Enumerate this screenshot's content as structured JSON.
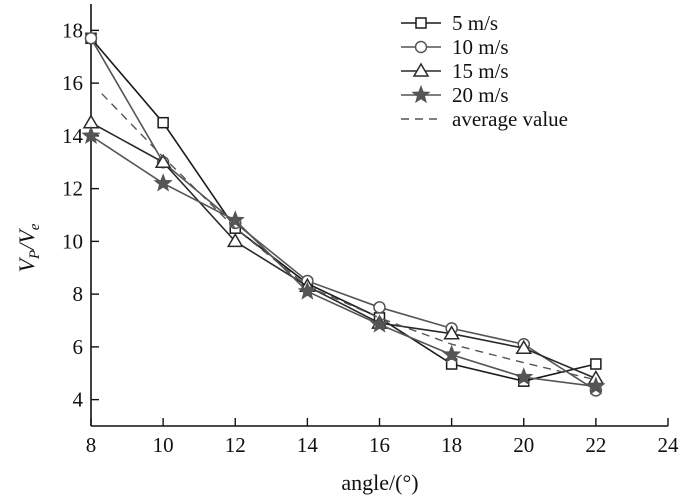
{
  "chart_data": {
    "type": "line",
    "title": "",
    "xlabel": "angle/(°)",
    "ylabel_parts": {
      "main": "V",
      "sub1": "P",
      "slash": "/V",
      "sub2": "e"
    },
    "xlim": [
      8,
      24
    ],
    "ylim": [
      3,
      19
    ],
    "xticks": [
      8,
      10,
      12,
      14,
      16,
      18,
      20,
      22,
      24
    ],
    "yticks": [
      4,
      6,
      8,
      10,
      12,
      14,
      16,
      18
    ],
    "grid": false,
    "legend_position": "top-right",
    "x": [
      8,
      10,
      12,
      14,
      16,
      18,
      20,
      22
    ],
    "series": [
      {
        "name": "5 m/s",
        "marker": "square",
        "color": "#1a1a1a",
        "values": [
          17.7,
          14.5,
          10.5,
          8.4,
          7.1,
          5.35,
          4.7,
          5.35
        ]
      },
      {
        "name": "10 m/s",
        "marker": "circle",
        "color": "#555555",
        "values": [
          17.7,
          13.0,
          10.7,
          8.5,
          7.5,
          6.7,
          6.1,
          4.35
        ]
      },
      {
        "name": "15 m/s",
        "marker": "triangle",
        "color": "#2a2a2a",
        "values": [
          14.5,
          13.0,
          10.0,
          8.3,
          6.9,
          6.5,
          5.95,
          4.8
        ]
      },
      {
        "name": "20 m/s",
        "marker": "star",
        "color": "#555555",
        "values": [
          14.0,
          12.2,
          10.8,
          8.1,
          6.85,
          5.7,
          4.85,
          4.5
        ]
      },
      {
        "name": "average value",
        "marker": "none",
        "dashed": true,
        "color": "#555555",
        "x": [
          8.3,
          10,
          12,
          14,
          16,
          18,
          20,
          22
        ],
        "values": [
          15.6,
          13.2,
          10.5,
          8.3,
          7.1,
          6.1,
          5.4,
          4.75
        ]
      }
    ]
  }
}
